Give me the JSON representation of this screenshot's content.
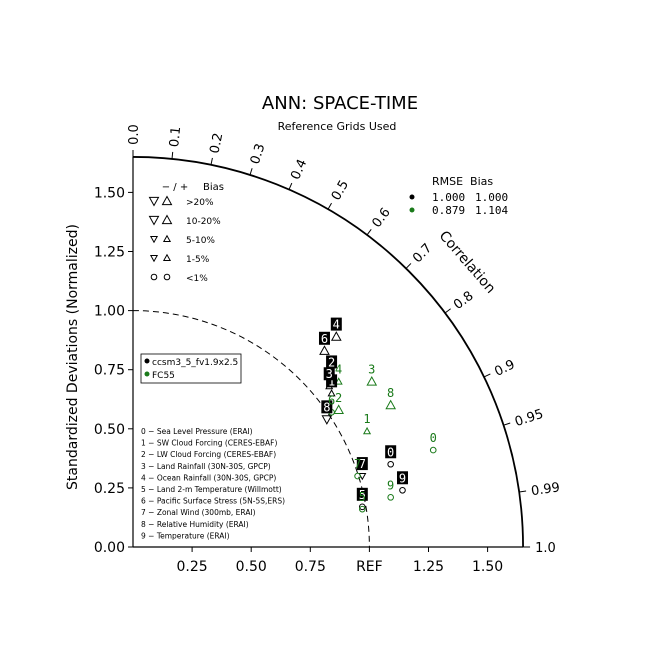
{
  "chart_data": {
    "type": "scatter",
    "title": "ANN: SPACE-TIME",
    "subtitle": "Reference Grids Used",
    "ylabel": "Standardized Deviations (Normalized)",
    "correlation_label": "Correlation",
    "xlim": [
      0,
      1.65
    ],
    "ylim": [
      0,
      1.65
    ],
    "x_ticks": [
      "0.25",
      "0.50",
      "0.75",
      "REF",
      "1.25",
      "1.50"
    ],
    "y_ticks": [
      "0.00",
      "0.25",
      "0.50",
      "0.75",
      "1.00",
      "1.25",
      "1.50"
    ],
    "correlation_ticks": [
      "0.0",
      "0.1",
      "0.2",
      "0.3",
      "0.4",
      "0.5",
      "0.6",
      "0.7",
      "0.8",
      "0.9",
      "0.95",
      "0.99",
      "1.0"
    ],
    "bias_legend": {
      "header_sign": "− / +",
      "header_bias": "Bias",
      "rows": [
        ">20%",
        "10-20%",
        "5-10%",
        "1-5%",
        "<1%"
      ]
    },
    "rmse_legend": {
      "header": "RMSE  Bias",
      "rows": [
        {
          "rmse": "1.000",
          "bias": "1.000",
          "color": "#000000"
        },
        {
          "rmse": "0.879",
          "bias": "1.104",
          "color": "#1a7a1a"
        }
      ]
    },
    "variables": [
      "0 − Sea Level Pressure (ERAI)",
      "1 − SW Cloud Forcing (CERES-EBAF)",
      "2 − LW Cloud Forcing (CERES-EBAF)",
      "3 − Land Rainfall (30N-30S, GPCP)",
      "4 − Ocean Rainfall (30N-30S, GPCP)",
      "5 − Land 2-m Temperature (Willmott)",
      "6 − Pacific Surface Stress (5N-5S,ERS)",
      "7 − Zonal Wind (300mb, ERAI)",
      "8 − Relative Humidity (ERAI)",
      "9 − Temperature (ERAI)"
    ],
    "series": [
      {
        "name": "ccsm3_5_fv1.9x2.5",
        "color": "#000000",
        "boxed": true,
        "points": [
          {
            "id": "0",
            "x": 1.09,
            "y": 0.35,
            "marker": "circle"
          },
          {
            "id": "1",
            "x": 0.84,
            "y": 0.65,
            "marker": "up-small"
          },
          {
            "id": "2",
            "x": 0.84,
            "y": 0.73,
            "marker": "up-small"
          },
          {
            "id": "3",
            "x": 0.83,
            "y": 0.68,
            "marker": "up-small"
          },
          {
            "id": "4",
            "x": 0.86,
            "y": 0.89,
            "marker": "up-medium"
          },
          {
            "id": "5",
            "x": 0.97,
            "y": 0.17,
            "marker": "circle"
          },
          {
            "id": "6",
            "x": 0.81,
            "y": 0.83,
            "marker": "up-medium"
          },
          {
            "id": "7",
            "x": 0.97,
            "y": 0.3,
            "marker": "down-small"
          },
          {
            "id": "8",
            "x": 0.82,
            "y": 0.54,
            "marker": "down-medium"
          },
          {
            "id": "9",
            "x": 1.14,
            "y": 0.24,
            "marker": "circle"
          }
        ]
      },
      {
        "name": "FC55",
        "color": "#1a7a1a",
        "boxed": false,
        "points": [
          {
            "id": "0",
            "x": 1.27,
            "y": 0.41,
            "marker": "circle"
          },
          {
            "id": "1",
            "x": 0.99,
            "y": 0.49,
            "marker": "up-small"
          },
          {
            "id": "2",
            "x": 0.87,
            "y": 0.58,
            "marker": "up-medium"
          },
          {
            "id": "3",
            "x": 1.01,
            "y": 0.7,
            "marker": "up-medium"
          },
          {
            "id": "4",
            "x": 0.87,
            "y": 0.7,
            "marker": "up-small"
          },
          {
            "id": "5",
            "x": 0.97,
            "y": 0.16,
            "marker": "circle"
          },
          {
            "id": "6",
            "x": 0.84,
            "y": 0.57,
            "marker": "circle"
          },
          {
            "id": "7",
            "x": 0.95,
            "y": 0.3,
            "marker": "circle"
          },
          {
            "id": "8",
            "x": 1.09,
            "y": 0.6,
            "marker": "up-medium"
          },
          {
            "id": "9",
            "x": 1.09,
            "y": 0.21,
            "marker": "circle"
          }
        ]
      }
    ]
  }
}
